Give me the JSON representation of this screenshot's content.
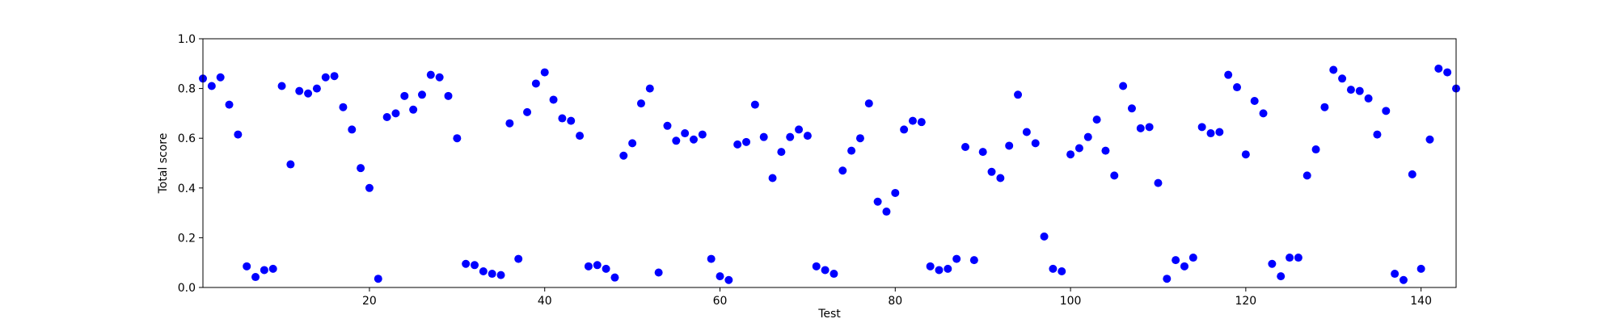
{
  "chart_data": {
    "type": "scatter",
    "title": "",
    "xlabel": "Test",
    "ylabel": "Total score",
    "xlim": [
      1,
      144
    ],
    "ylim": [
      0,
      1
    ],
    "x_ticks": [
      20,
      40,
      60,
      80,
      100,
      120,
      140
    ],
    "y_ticks": [
      0.0,
      0.2,
      0.4,
      0.6,
      0.8,
      1.0
    ],
    "x_tick_labels": [
      "20",
      "40",
      "60",
      "80",
      "100",
      "120",
      "140"
    ],
    "y_tick_labels": [
      "0.0",
      "0.2",
      "0.4",
      "0.6",
      "0.8",
      "1.0"
    ],
    "grid": false,
    "marker_color": "#0000ff",
    "series": [
      {
        "x": [
          1,
          2,
          3,
          4,
          5,
          6,
          7,
          8,
          9,
          10,
          11,
          12,
          13,
          14,
          15,
          16,
          17,
          18,
          19,
          20,
          21,
          22,
          23,
          24,
          25,
          26,
          27,
          28,
          29,
          30,
          31,
          32,
          33,
          34,
          35,
          36,
          37,
          38,
          39,
          40,
          41,
          42,
          43,
          44,
          45,
          46,
          47,
          48,
          49,
          50,
          51,
          52,
          53,
          54,
          55,
          56,
          57,
          58,
          59,
          60,
          61,
          62,
          63,
          64,
          65,
          66,
          67,
          68,
          69,
          70,
          71,
          72,
          73,
          74,
          75,
          76,
          77,
          78,
          79,
          80,
          81,
          82,
          83,
          84,
          85,
          86,
          87,
          88,
          89,
          90,
          91,
          92,
          93,
          94,
          95,
          96,
          97,
          98,
          99,
          100,
          101,
          102,
          103,
          104,
          105,
          106,
          107,
          108,
          109,
          110,
          111,
          112,
          113,
          114,
          115,
          116,
          117,
          118,
          119,
          120,
          121,
          122,
          123,
          124,
          125,
          126,
          127,
          128,
          129,
          130,
          131,
          132,
          133,
          134,
          135,
          136,
          137,
          138,
          139,
          140,
          141,
          142,
          143,
          144
        ],
        "y": [
          0.84,
          0.81,
          0.845,
          0.735,
          0.615,
          0.085,
          0.042,
          0.07,
          0.075,
          0.81,
          0.495,
          0.79,
          0.78,
          0.8,
          0.845,
          0.85,
          0.725,
          0.635,
          0.48,
          0.4,
          0.035,
          0.685,
          0.7,
          0.77,
          0.715,
          0.775,
          0.855,
          0.845,
          0.77,
          0.6,
          0.095,
          0.09,
          0.065,
          0.055,
          0.05,
          0.66,
          0.115,
          0.705,
          0.82,
          0.865,
          0.755,
          0.68,
          0.67,
          0.61,
          0.085,
          0.09,
          0.075,
          0.04,
          0.53,
          0.58,
          0.74,
          0.8,
          0.06,
          0.65,
          0.59,
          0.62,
          0.595,
          0.615,
          0.115,
          0.045,
          0.03,
          0.575,
          0.585,
          0.735,
          0.605,
          0.44,
          0.545,
          0.605,
          0.635,
          0.61,
          0.085,
          0.07,
          0.055,
          0.47,
          0.55,
          0.6,
          0.74,
          0.345,
          0.305,
          0.38,
          0.635,
          0.67,
          0.665,
          0.085,
          0.07,
          0.075,
          0.115,
          0.565,
          0.11,
          0.545,
          0.465,
          0.44,
          0.57,
          0.775,
          0.625,
          0.58,
          0.205,
          0.075,
          0.065,
          0.535,
          0.56,
          0.605,
          0.675,
          0.55,
          0.45,
          0.81,
          0.72,
          0.64,
          0.645,
          0.42,
          0.035,
          0.11,
          0.085,
          0.12,
          0.645,
          0.62,
          0.625,
          0.855,
          0.805,
          0.535,
          0.75,
          0.7,
          0.095,
          0.045,
          0.12,
          0.12,
          0.45,
          0.555,
          0.725,
          0.875,
          0.84,
          0.795,
          0.79,
          0.76,
          0.615,
          0.71,
          0.055,
          0.03,
          0.455,
          0.075,
          0.595,
          0.88,
          0.865,
          0.8
        ]
      }
    ]
  }
}
